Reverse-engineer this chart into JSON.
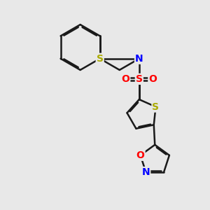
{
  "bg_color": "#e8e8e8",
  "bond_color": "#1a1a1a",
  "S_color": "#aaaa00",
  "N_color": "#0000ff",
  "O_color": "#ff0000",
  "SO2_S_color": "#ff0000",
  "lw": 1.8,
  "dbo": 0.055,
  "fs": 10,
  "xlim": [
    0,
    10
  ],
  "ylim": [
    0,
    10
  ]
}
